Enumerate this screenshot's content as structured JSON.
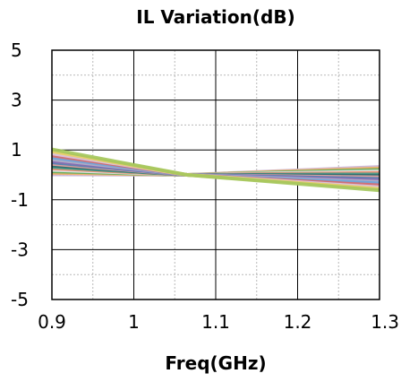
{
  "chart_data": {
    "type": "line",
    "title": "IL Variation(dB)",
    "xlabel": "Freq(GHz)",
    "ylabel": "",
    "xlim": [
      0.9,
      1.3
    ],
    "ylim": [
      -5,
      5
    ],
    "x_ticks": [
      "0.9",
      "1",
      "1.1",
      "1.2",
      "1.3"
    ],
    "y_ticks": [
      "5",
      "3",
      "1",
      "-1",
      "-3",
      "-5"
    ],
    "grid": true,
    "legend": "none",
    "colors": [
      "#c9b3d6",
      "#d9c8e3",
      "#b0b0c8",
      "#f2a3a3",
      "#f28c6a",
      "#f0b060",
      "#e8cf62",
      "#6aa3d9",
      "#4d7fb3",
      "#3c9c8c",
      "#5cae5c",
      "#a3c65c",
      "#d96a6a",
      "#8c6ab3",
      "#2e6b6b",
      "#e6e6ef"
    ],
    "series": [
      {
        "x": [
          0.9,
          1.065,
          1.3
        ],
        "values": [
          0.02,
          0.0,
          0.32
        ]
      },
      {
        "x": [
          0.9,
          1.065,
          1.3
        ],
        "values": [
          0.08,
          0.0,
          0.26
        ]
      },
      {
        "x": [
          0.9,
          1.065,
          1.3
        ],
        "values": [
          0.14,
          0.0,
          0.2
        ]
      },
      {
        "x": [
          0.9,
          1.065,
          1.3
        ],
        "values": [
          0.2,
          0.0,
          0.14
        ]
      },
      {
        "x": [
          0.9,
          1.065,
          1.3
        ],
        "values": [
          0.26,
          0.0,
          0.08
        ]
      },
      {
        "x": [
          0.9,
          1.065,
          1.3
        ],
        "values": [
          0.32,
          0.0,
          0.02
        ]
      },
      {
        "x": [
          0.9,
          1.065,
          1.3
        ],
        "values": [
          0.38,
          0.0,
          -0.04
        ]
      },
      {
        "x": [
          0.9,
          1.065,
          1.3
        ],
        "values": [
          0.44,
          0.0,
          -0.1
        ]
      },
      {
        "x": [
          0.9,
          1.065,
          1.3
        ],
        "values": [
          0.5,
          0.0,
          -0.16
        ]
      },
      {
        "x": [
          0.9,
          1.065,
          1.3
        ],
        "values": [
          0.56,
          0.0,
          -0.22
        ]
      },
      {
        "x": [
          0.9,
          1.065,
          1.3
        ],
        "values": [
          0.62,
          0.0,
          -0.28
        ]
      },
      {
        "x": [
          0.9,
          1.065,
          1.3
        ],
        "values": [
          0.7,
          0.0,
          -0.34
        ]
      },
      {
        "x": [
          0.9,
          1.065,
          1.3
        ],
        "values": [
          0.78,
          0.0,
          -0.42
        ]
      },
      {
        "x": [
          0.9,
          1.065,
          1.3
        ],
        "values": [
          0.86,
          0.0,
          -0.5
        ]
      },
      {
        "x": [
          0.9,
          1.065,
          1.3
        ],
        "values": [
          0.94,
          0.0,
          -0.56
        ]
      },
      {
        "x": [
          0.9,
          1.065,
          1.3
        ],
        "values": [
          1.02,
          0.0,
          -0.62
        ]
      }
    ]
  }
}
